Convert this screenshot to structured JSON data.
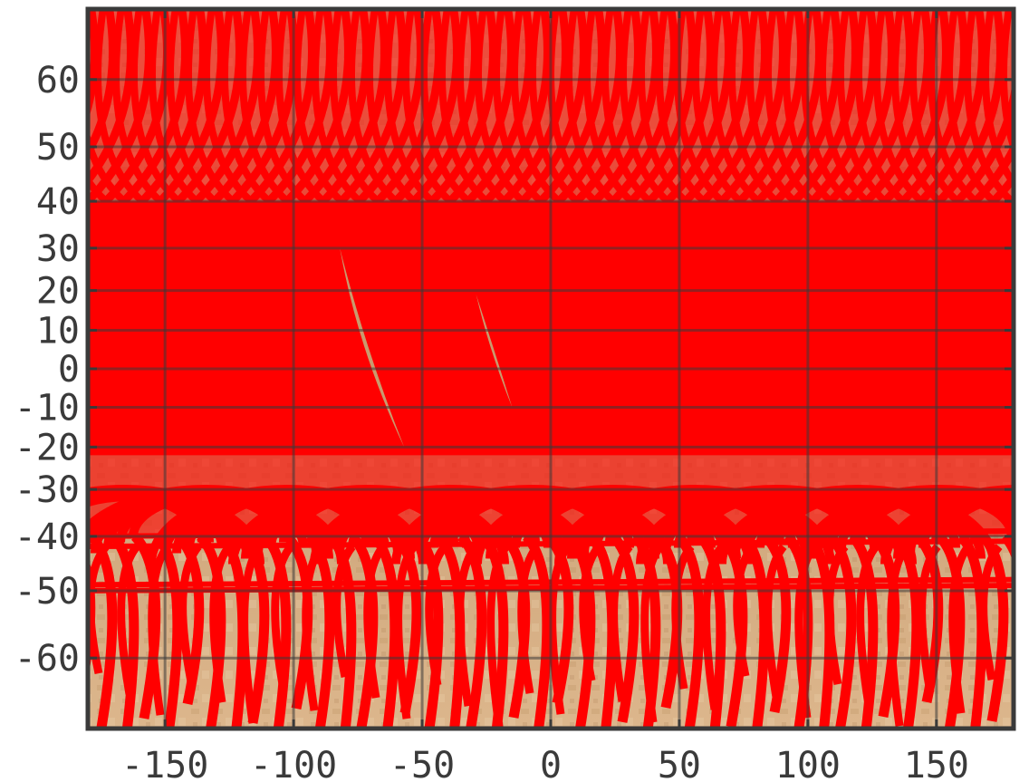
{
  "chart_data": {
    "type": "map",
    "title": "",
    "xlabel": "",
    "ylabel": "",
    "projection": "Mercator",
    "background": "planetary surface map (tan / sepia texture)",
    "xlim": [
      -180,
      180
    ],
    "ylim": [
      -68,
      68
    ],
    "xticks": [
      -150,
      -100,
      -50,
      0,
      50,
      100,
      150
    ],
    "xtick_labels": [
      "-150",
      "-100",
      "-50",
      "0",
      "50",
      "100",
      "150"
    ],
    "yticks": [
      60,
      50,
      40,
      30,
      20,
      10,
      0,
      -10,
      -20,
      -30,
      -40,
      -50,
      -60
    ],
    "ytick_labels": [
      "60",
      "50",
      "40",
      "30",
      "20",
      "10",
      "0",
      "-10",
      "-20",
      "-30",
      "-40",
      "-50",
      "-60"
    ],
    "grid": true,
    "overlay": {
      "description": "dense red small-circle arcs (coverage footprints) over the map",
      "color": "#ff0000",
      "solid_band_lat": [
        -22,
        40
      ],
      "upper_arc_band_lat": [
        40,
        68
      ],
      "lower_arc_band_lat": [
        -68,
        -22
      ]
    },
    "colors": {
      "overlay": "#ff0000",
      "frame": "#3a3a3a",
      "map_light": "#e3c29a",
      "map_dark": "#b88a5c"
    }
  }
}
